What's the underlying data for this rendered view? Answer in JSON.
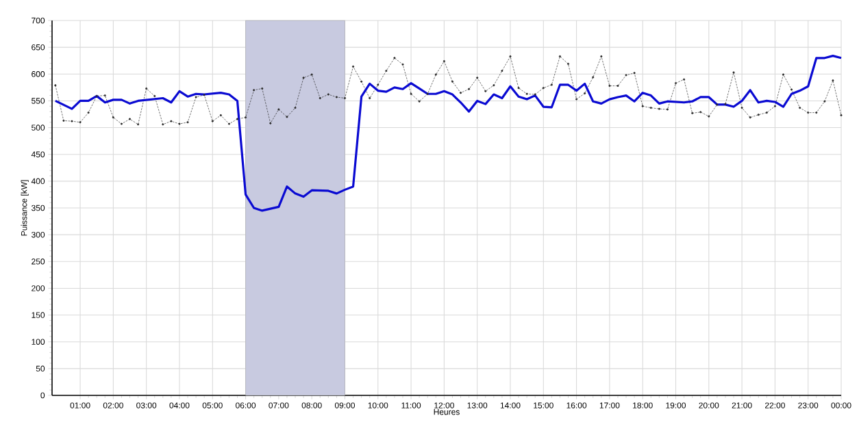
{
  "chart_data": {
    "type": "line",
    "xlabel": "Heures",
    "ylabel": "Puissance [kW]",
    "xlim": [
      0.15,
      24
    ],
    "ylim": [
      0,
      700
    ],
    "xticks": [
      {
        "value": 1,
        "label": "01:00"
      },
      {
        "value": 2,
        "label": "02:00"
      },
      {
        "value": 3,
        "label": "03:00"
      },
      {
        "value": 4,
        "label": "04:00"
      },
      {
        "value": 5,
        "label": "05:00"
      },
      {
        "value": 6,
        "label": "06:00"
      },
      {
        "value": 7,
        "label": "07:00"
      },
      {
        "value": 8,
        "label": "08:00"
      },
      {
        "value": 9,
        "label": "09:00"
      },
      {
        "value": 10,
        "label": "10:00"
      },
      {
        "value": 11,
        "label": "11:00"
      },
      {
        "value": 12,
        "label": "12:00"
      },
      {
        "value": 13,
        "label": "13:00"
      },
      {
        "value": 14,
        "label": "14:00"
      },
      {
        "value": 15,
        "label": "15:00"
      },
      {
        "value": 16,
        "label": "16:00"
      },
      {
        "value": 17,
        "label": "17:00"
      },
      {
        "value": 18,
        "label": "18:00"
      },
      {
        "value": 19,
        "label": "19:00"
      },
      {
        "value": 20,
        "label": "20:00"
      },
      {
        "value": 21,
        "label": "21:00"
      },
      {
        "value": 22,
        "label": "22:00"
      },
      {
        "value": 23,
        "label": "23:00"
      },
      {
        "value": 24,
        "label": "00:00"
      }
    ],
    "yticks": [
      0,
      50,
      100,
      150,
      200,
      250,
      300,
      350,
      400,
      450,
      500,
      550,
      600,
      650,
      700
    ],
    "grid": true,
    "bands": [
      {
        "axis": "x",
        "from": 6,
        "to": 9,
        "color": "#c8cae0"
      }
    ],
    "series": [
      {
        "color": "#2a2a2a",
        "line_style": "dashed",
        "marker": "circle",
        "x": [
          0.25,
          0.5,
          0.75,
          1,
          1.25,
          1.5,
          1.75,
          2,
          2.25,
          2.5,
          2.75,
          3,
          3.25,
          3.5,
          3.75,
          4,
          4.25,
          4.5,
          4.75,
          5,
          5.25,
          5.5,
          5.75,
          6,
          6.25,
          6.5,
          6.75,
          7,
          7.25,
          7.5,
          7.75,
          8,
          8.25,
          8.5,
          8.75,
          9,
          9.25,
          9.5,
          9.75,
          10,
          10.25,
          10.5,
          10.75,
          11,
          11.25,
          11.5,
          11.75,
          12,
          12.25,
          12.5,
          12.75,
          13,
          13.25,
          13.5,
          13.75,
          14,
          14.25,
          14.5,
          14.75,
          15,
          15.25,
          15.5,
          15.75,
          16,
          16.25,
          16.5,
          16.75,
          17,
          17.25,
          17.5,
          17.75,
          18,
          18.25,
          18.5,
          18.75,
          19,
          19.25,
          19.5,
          19.75,
          20,
          20.25,
          20.5,
          20.75,
          21,
          21.25,
          21.5,
          21.75,
          22,
          22.25,
          22.5,
          22.75,
          23,
          23.25,
          23.5,
          23.75,
          24
        ],
        "values": [
          579,
          513,
          512,
          510,
          528,
          559,
          560,
          519,
          507,
          516,
          506,
          573,
          559,
          506,
          512,
          507,
          510,
          557,
          561,
          512,
          523,
          507,
          516,
          519,
          570,
          573,
          508,
          534,
          520,
          537,
          593,
          599,
          555,
          562,
          557,
          555,
          614,
          586,
          555,
          580,
          606,
          630,
          618,
          563,
          549,
          563,
          599,
          624,
          586,
          565,
          572,
          593,
          568,
          579,
          606,
          633,
          574,
          563,
          562,
          574,
          580,
          633,
          619,
          553,
          564,
          594,
          633,
          578,
          578,
          598,
          602,
          540,
          537,
          535,
          534,
          583,
          590,
          527,
          529,
          521,
          543,
          544,
          603,
          537,
          519,
          524,
          528,
          540,
          599,
          571,
          537,
          528,
          528,
          549,
          588,
          523
        ]
      },
      {
        "color": "#0a0ad2",
        "line_style": "solid",
        "marker": "none",
        "x": [
          0.25,
          0.75,
          1,
          1.25,
          1.5,
          1.75,
          2,
          2.25,
          2.5,
          2.75,
          3.5,
          3.75,
          4,
          4.25,
          4.5,
          4.75,
          5.25,
          5.5,
          5.75,
          6,
          6.25,
          6.5,
          7,
          7.25,
          7.5,
          7.75,
          8,
          8.5,
          8.75,
          9,
          9.25,
          9.5,
          9.75,
          10,
          10.25,
          10.5,
          10.75,
          11,
          11.25,
          11.5,
          11.75,
          12,
          12.25,
          12.5,
          12.75,
          13,
          13.25,
          13.5,
          13.75,
          14,
          14.25,
          14.5,
          14.75,
          15,
          15.25,
          15.5,
          15.75,
          16,
          16.25,
          16.5,
          16.75,
          17,
          17.25,
          17.5,
          17.75,
          18,
          18.25,
          18.5,
          18.75,
          19.25,
          19.5,
          19.75,
          20,
          20.25,
          20.5,
          20.75,
          21,
          21.25,
          21.5,
          21.75,
          22,
          22.25,
          22.5,
          22.75,
          23,
          23.25,
          23.5,
          23.75,
          24
        ],
        "values": [
          550,
          535,
          550,
          550,
          559,
          547,
          552,
          552,
          545,
          550,
          555,
          547,
          568,
          558,
          563,
          562,
          565,
          562,
          550,
          375,
          350,
          345,
          352,
          390,
          377,
          371,
          383,
          382,
          377,
          384,
          390,
          558,
          582,
          569,
          567,
          575,
          572,
          583,
          573,
          563,
          563,
          568,
          562,
          547,
          530,
          550,
          544,
          562,
          555,
          577,
          558,
          553,
          560,
          539,
          538,
          580,
          580,
          569,
          582,
          549,
          545,
          553,
          557,
          560,
          549,
          565,
          560,
          545,
          549,
          547,
          549,
          557,
          557,
          543,
          543,
          539,
          550,
          570,
          547,
          550,
          548,
          539,
          563,
          569,
          577,
          630,
          630,
          634,
          630
        ]
      }
    ]
  }
}
